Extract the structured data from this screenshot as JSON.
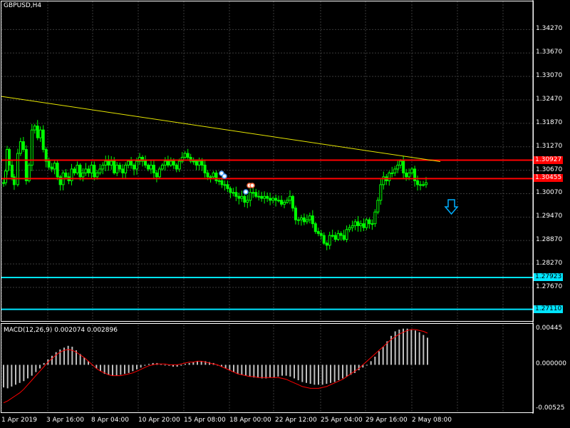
{
  "window": {
    "symbol_title": "GBPUSD,H4"
  },
  "colors": {
    "background": "#000000",
    "grid": "#3a3a3a",
    "candle": "#00ff00",
    "trendline": "#e6e600",
    "resistance": "#ff0000",
    "support": "#00e5ff",
    "macd_hist": "#c0c0c0",
    "macd_signal": "#ff0000",
    "arrow": "#00b0ff"
  },
  "price_axis": {
    "ticks": [
      "1.34270",
      "1.33670",
      "1.33070",
      "1.32470",
      "1.31870",
      "1.31270",
      "1.30670",
      "1.30070",
      "1.29470",
      "1.28870",
      "1.28270",
      "1.27670"
    ],
    "tick_values": [
      1.3427,
      1.3367,
      1.3307,
      1.3247,
      1.3187,
      1.3127,
      1.3067,
      1.3007,
      1.2947,
      1.2887,
      1.2827,
      1.2767
    ],
    "range": [
      1.2681,
      1.3499
    ]
  },
  "levels": {
    "resistance_1": {
      "label": "1.30927",
      "value": 1.30927
    },
    "resistance_2": {
      "label": "1.30455",
      "value": 1.30455
    },
    "support_1": {
      "label": "1.27923",
      "value": 1.27923
    },
    "support_2": {
      "label": "1.27110",
      "value": 1.2711
    }
  },
  "trendline": {
    "start": 1.3256,
    "end": 1.3089
  },
  "time_axis": {
    "labels": [
      "1 Apr 2019",
      "3 Apr 16:00",
      "8 Apr 04:00",
      "10 Apr 20:00",
      "15 Apr 08:00",
      "18 Apr 00:00",
      "22 Apr 12:00",
      "25 Apr 04:00",
      "29 Apr 16:00",
      "2 May 08:00"
    ]
  },
  "macd": {
    "label": "MACD(12,26,9) 0.002074 0.002896",
    "ticks": [
      "0.00445",
      "0.000000",
      "-0.00525"
    ],
    "tick_values": [
      0.00445,
      0.0,
      -0.00525
    ],
    "range": [
      -0.00525,
      0.00445
    ]
  },
  "chart_data": {
    "type": "candlestick",
    "title": "GBPUSD,H4",
    "close_points": [
      [
        0,
        1.3035
      ],
      [
        3,
        1.3065
      ],
      [
        5,
        1.312
      ],
      [
        8,
        1.308
      ],
      [
        12,
        1.305
      ],
      [
        15,
        1.303
      ],
      [
        20,
        1.311
      ],
      [
        24,
        1.314
      ],
      [
        28,
        1.312
      ],
      [
        32,
        1.304
      ],
      [
        36,
        1.308
      ],
      [
        40,
        1.317
      ],
      [
        44,
        1.318
      ],
      [
        48,
        1.315
      ],
      [
        52,
        1.317
      ],
      [
        56,
        1.312
      ],
      [
        60,
        1.309
      ],
      [
        64,
        1.3075
      ],
      [
        68,
        1.307
      ],
      [
        72,
        1.3085
      ],
      [
        76,
        1.305
      ],
      [
        80,
        1.303
      ],
      [
        84,
        1.306
      ],
      [
        88,
        1.305
      ],
      [
        92,
        1.304
      ],
      [
        96,
        1.307
      ],
      [
        100,
        1.306
      ],
      [
        104,
        1.308
      ],
      [
        108,
        1.305
      ],
      [
        112,
        1.306
      ],
      [
        116,
        1.307
      ],
      [
        120,
        1.306
      ],
      [
        124,
        1.308
      ],
      [
        128,
        1.305
      ],
      [
        132,
        1.306
      ],
      [
        136,
        1.307
      ],
      [
        140,
        1.308
      ],
      [
        144,
        1.309
      ],
      [
        148,
        1.308
      ],
      [
        152,
        1.309
      ],
      [
        156,
        1.306
      ],
      [
        160,
        1.308
      ],
      [
        164,
        1.307
      ],
      [
        168,
        1.306
      ],
      [
        172,
        1.308
      ],
      [
        176,
        1.309
      ],
      [
        180,
        1.308
      ],
      [
        184,
        1.307
      ],
      [
        188,
        1.309
      ],
      [
        192,
        1.31
      ],
      [
        196,
        1.309
      ],
      [
        200,
        1.308
      ],
      [
        204,
        1.307
      ],
      [
        208,
        1.308
      ],
      [
        212,
        1.306
      ],
      [
        216,
        1.305
      ],
      [
        220,
        1.307
      ],
      [
        224,
        1.308
      ],
      [
        228,
        1.309
      ],
      [
        232,
        1.308
      ],
      [
        236,
        1.309
      ],
      [
        240,
        1.308
      ],
      [
        244,
        1.307
      ],
      [
        248,
        1.309
      ],
      [
        252,
        1.31
      ],
      [
        256,
        1.311
      ],
      [
        260,
        1.31
      ],
      [
        264,
        1.309
      ],
      [
        268,
        1.309
      ],
      [
        272,
        1.308
      ],
      [
        276,
        1.309
      ],
      [
        280,
        1.308
      ],
      [
        284,
        1.306
      ],
      [
        288,
        1.305
      ],
      [
        292,
        1.305
      ],
      [
        296,
        1.306
      ],
      [
        300,
        1.304
      ],
      [
        304,
        1.304
      ],
      [
        308,
        1.303
      ],
      [
        312,
        1.303
      ],
      [
        316,
        1.302
      ],
      [
        320,
        1.301
      ],
      [
        324,
        1.301
      ],
      [
        328,
        1.3
      ],
      [
        332,
        1.2995
      ],
      [
        336,
        1.3
      ],
      [
        340,
        1.2985
      ],
      [
        344,
        1.299
      ],
      [
        348,
        1.301
      ],
      [
        352,
        1.301
      ],
      [
        356,
        1.3
      ],
      [
        360,
        1.3
      ],
      [
        364,
        1.2995
      ],
      [
        368,
        1.3
      ],
      [
        372,
        1.2995
      ],
      [
        376,
        1.299
      ],
      [
        380,
        1.2995
      ],
      [
        384,
        1.299
      ],
      [
        388,
        1.299
      ],
      [
        392,
        1.298
      ],
      [
        396,
        1.2985
      ],
      [
        400,
        1.299
      ],
      [
        404,
        1.3
      ],
      [
        408,
        1.297
      ],
      [
        412,
        1.294
      ],
      [
        416,
        1.294
      ],
      [
        420,
        1.2945
      ],
      [
        424,
        1.2935
      ],
      [
        428,
        1.294
      ],
      [
        432,
        1.295
      ],
      [
        436,
        1.293
      ],
      [
        440,
        1.291
      ],
      [
        444,
        1.2905
      ],
      [
        448,
        1.29
      ],
      [
        452,
        1.288
      ],
      [
        456,
        1.2875
      ],
      [
        460,
        1.29
      ],
      [
        464,
        1.29
      ],
      [
        468,
        1.289
      ],
      [
        472,
        1.2905
      ],
      [
        476,
        1.29
      ],
      [
        480,
        1.289
      ],
      [
        484,
        1.2915
      ],
      [
        488,
        1.292
      ],
      [
        492,
        1.2925
      ],
      [
        496,
        1.2935
      ],
      [
        500,
        1.2925
      ],
      [
        504,
        1.293
      ],
      [
        508,
        1.292
      ],
      [
        512,
        1.294
      ],
      [
        516,
        1.293
      ],
      [
        520,
        1.293
      ],
      [
        524,
        1.296
      ],
      [
        528,
        1.299
      ],
      [
        532,
        1.303
      ],
      [
        536,
        1.305
      ],
      [
        540,
        1.304
      ],
      [
        544,
        1.306
      ],
      [
        548,
        1.306
      ],
      [
        552,
        1.307
      ],
      [
        556,
        1.308
      ],
      [
        560,
        1.309
      ],
      [
        564,
        1.306
      ],
      [
        568,
        1.305
      ],
      [
        572,
        1.306
      ],
      [
        576,
        1.307
      ],
      [
        580,
        1.304
      ],
      [
        584,
        1.303
      ],
      [
        588,
        1.303
      ],
      [
        592,
        1.303
      ],
      [
        596,
        1.3035
      ]
    ],
    "macd_hist": [
      -0.0025,
      -0.0026,
      -0.0024,
      -0.0022,
      -0.002,
      -0.0018,
      -0.0015,
      -0.0012,
      -0.0008,
      -0.0004,
      0.0002,
      0.0006,
      0.001,
      0.0014,
      0.0017,
      0.0019,
      0.0021,
      0.002,
      0.0016,
      0.0012,
      0.0008,
      0.0004,
      0.0,
      -0.0004,
      -0.0007,
      -0.001,
      -0.0011,
      -0.0012,
      -0.0012,
      -0.0011,
      -0.001,
      -0.0009,
      -0.0007,
      -0.0005,
      -0.0003,
      -0.0001,
      0.0001,
      0.0002,
      0.0002,
      0.0001,
      0.0,
      -0.0001,
      -0.0002,
      -0.0002,
      -0.0001,
      0.0001,
      0.0002,
      0.0003,
      0.0004,
      0.0004,
      0.0004,
      0.0003,
      0.0002,
      0.0,
      -0.0002,
      -0.0004,
      -0.0006,
      -0.0008,
      -0.001,
      -0.0011,
      -0.0012,
      -0.0013,
      -0.0014,
      -0.0014,
      -0.0015,
      -0.0015,
      -0.0014,
      -0.0014,
      -0.0013,
      -0.0012,
      -0.0012,
      -0.0013,
      -0.0015,
      -0.0017,
      -0.0019,
      -0.002,
      -0.0021,
      -0.0022,
      -0.0022,
      -0.0022,
      -0.0021,
      -0.002,
      -0.0019,
      -0.0017,
      -0.0015,
      -0.0013,
      -0.0011,
      -0.0009,
      -0.0006,
      -0.0003,
      0.0,
      0.0004,
      0.0009,
      0.0015,
      0.002,
      0.0026,
      0.0032,
      0.0037,
      0.0039,
      0.004,
      0.004,
      0.0039,
      0.0038,
      0.0036,
      0.0033,
      0.003
    ],
    "macd_signal": [
      -0.0042,
      -0.004,
      -0.0037,
      -0.0034,
      -0.0031,
      -0.0027,
      -0.0022,
      -0.0017,
      -0.0012,
      -0.0007,
      -0.0002,
      0.0003,
      0.0007,
      0.0011,
      0.0014,
      0.0016,
      0.0017,
      0.0016,
      0.0014,
      0.0011,
      0.0008,
      0.0004,
      0.0,
      -0.0004,
      -0.0007,
      -0.0009,
      -0.0011,
      -0.0012,
      -0.0012,
      -0.0012,
      -0.0011,
      -0.001,
      -0.0009,
      -0.0007,
      -0.0005,
      -0.0003,
      -0.0001,
      0.0,
      0.0001,
      0.0001,
      0.0001,
      0.0,
      0.0,
      0.0,
      0.0001,
      0.0002,
      0.0003,
      0.0003,
      0.0004,
      0.0004,
      0.0003,
      0.0002,
      0.0001,
      0.0,
      -0.0002,
      -0.0004,
      -0.0006,
      -0.0008,
      -0.001,
      -0.0011,
      -0.0012,
      -0.0013,
      -0.0013,
      -0.0014,
      -0.0014,
      -0.0014,
      -0.0014,
      -0.0014,
      -0.0014,
      -0.0015,
      -0.0016,
      -0.0018,
      -0.002,
      -0.0022,
      -0.0024,
      -0.0025,
      -0.0026,
      -0.0026,
      -0.0026,
      -0.0025,
      -0.0024,
      -0.0022,
      -0.002,
      -0.0018,
      -0.0016,
      -0.0013,
      -0.001,
      -0.0007,
      -0.0004,
      0.0,
      0.0004,
      0.0008,
      0.0012,
      0.0016,
      0.002,
      0.0024,
      0.0028,
      0.0031,
      0.0034,
      0.0036,
      0.0038,
      0.0039,
      0.0039,
      0.0038,
      0.0037,
      0.0035
    ]
  }
}
